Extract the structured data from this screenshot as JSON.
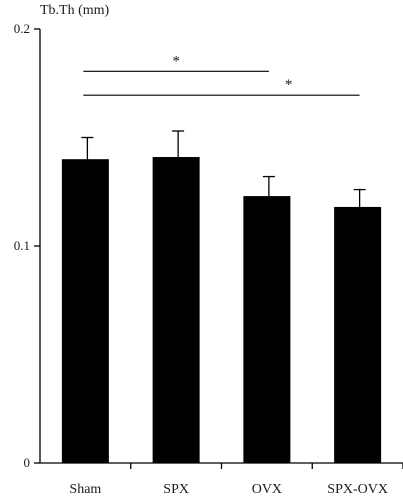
{
  "chart_data": {
    "type": "bar",
    "ylabel": "Tb.Th (mm)",
    "categories": [
      "Sham",
      "SPX",
      "OVX",
      "SPX-OVX"
    ],
    "values": [
      0.14,
      0.141,
      0.123,
      0.118
    ],
    "errors": [
      0.01,
      0.012,
      0.009,
      0.008
    ],
    "ylim": [
      0,
      0.2
    ],
    "yticks": [
      0,
      0.1,
      0.2
    ],
    "ytick_labels": [
      "0",
      "0.1",
      "0.2"
    ],
    "bar_color": "#000000",
    "significance": [
      {
        "from": "Sham",
        "to": "OVX",
        "label": "*"
      },
      {
        "from": "Sham",
        "to": "SPX-OVX",
        "label": "*"
      }
    ],
    "grid": false
  }
}
